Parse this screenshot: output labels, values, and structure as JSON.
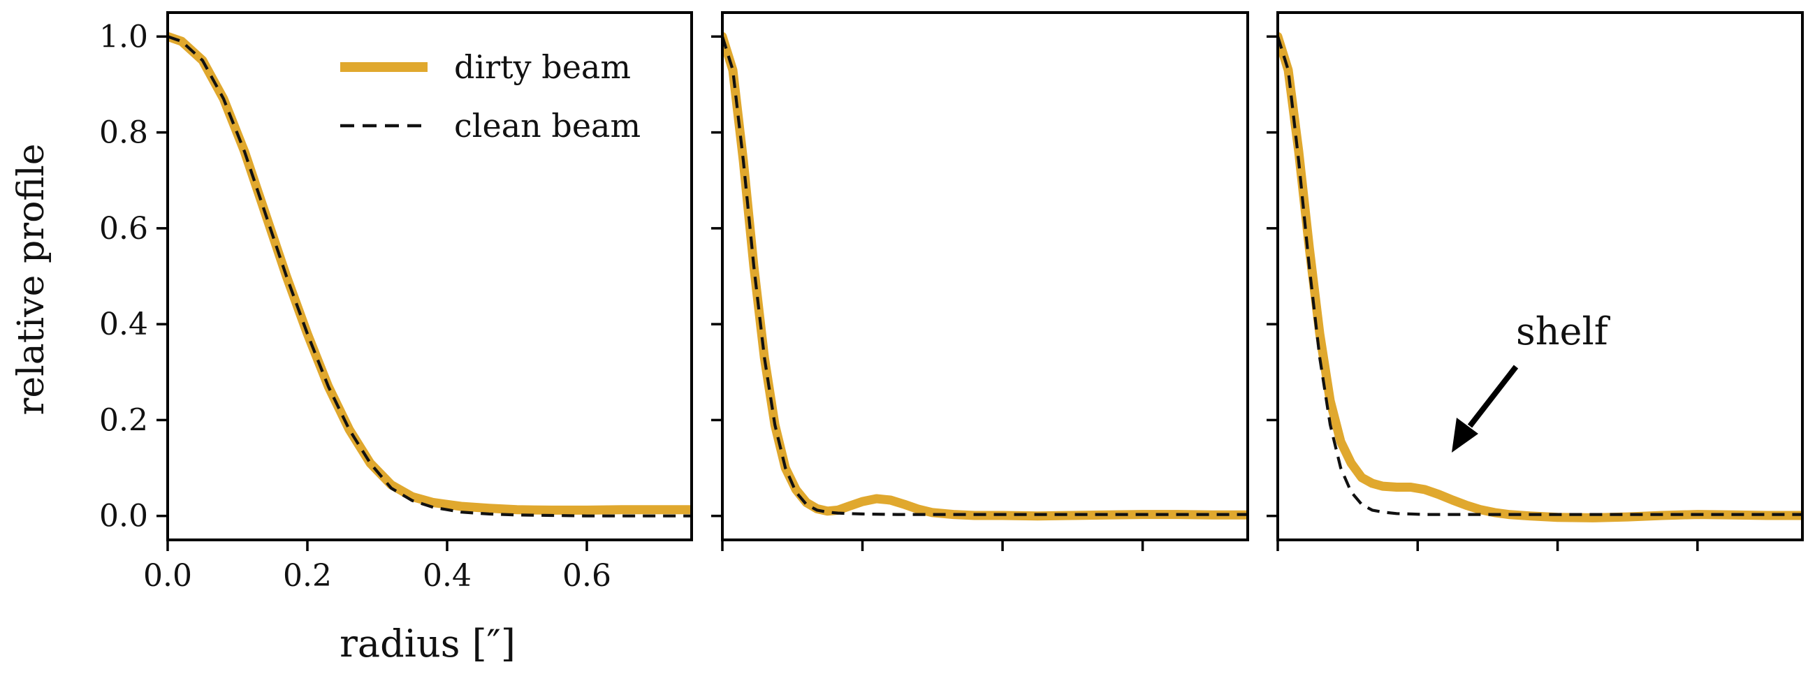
{
  "figure": {
    "ylabel": "relative profile",
    "xlabel": "radius [″]",
    "legend": {
      "placement": "top-right of first panel",
      "dirty_label": "dirty beam",
      "clean_label": "clean beam"
    },
    "annotation": {
      "text": "shelf",
      "panel": 3
    },
    "colors": {
      "dirty": "#E0A82E",
      "clean": "#111111",
      "axes": "#000000"
    }
  },
  "chart_data": [
    {
      "type": "line",
      "panel": 1,
      "xlim": [
        0.0,
        0.75
      ],
      "ylim": [
        -0.05,
        1.05
      ],
      "xticks": [
        0.0,
        0.2,
        0.4,
        0.6
      ],
      "xtick_labels": [
        "0.0",
        "0.2",
        "0.4",
        "0.6"
      ],
      "yticks": [
        0.0,
        0.2,
        0.4,
        0.6,
        0.8,
        1.0
      ],
      "ytick_labels": [
        "0.0",
        "0.2",
        "0.4",
        "0.6",
        "0.8",
        "1.0"
      ],
      "grid": false,
      "legend": true,
      "series": [
        {
          "name": "dirty beam",
          "style": "solid-thick",
          "x": [
            0.0,
            0.02,
            0.05,
            0.08,
            0.11,
            0.14,
            0.17,
            0.2,
            0.23,
            0.26,
            0.29,
            0.32,
            0.35,
            0.38,
            0.42,
            0.46,
            0.5,
            0.55,
            0.6,
            0.65,
            0.7,
            0.75
          ],
          "y": [
            1.0,
            0.99,
            0.95,
            0.87,
            0.76,
            0.63,
            0.5,
            0.38,
            0.27,
            0.18,
            0.11,
            0.065,
            0.04,
            0.028,
            0.02,
            0.016,
            0.013,
            0.012,
            0.012,
            0.013,
            0.013,
            0.013
          ]
        },
        {
          "name": "clean beam",
          "style": "dashed",
          "x": [
            0.0,
            0.02,
            0.05,
            0.08,
            0.11,
            0.14,
            0.17,
            0.2,
            0.23,
            0.26,
            0.29,
            0.32,
            0.35,
            0.38,
            0.42,
            0.46,
            0.5,
            0.55,
            0.6,
            0.65,
            0.7,
            0.75
          ],
          "y": [
            1.0,
            0.99,
            0.95,
            0.87,
            0.76,
            0.63,
            0.5,
            0.38,
            0.27,
            0.18,
            0.11,
            0.058,
            0.032,
            0.018,
            0.008,
            0.004,
            0.002,
            0.001,
            0.0,
            0.0,
            0.0,
            0.0
          ]
        }
      ]
    },
    {
      "type": "line",
      "panel": 2,
      "xlim": [
        0.0,
        0.75
      ],
      "ylim": [
        -0.05,
        1.05
      ],
      "xticks": [
        0.0,
        0.2,
        0.4,
        0.6
      ],
      "xtick_labels": [],
      "yticks": [
        0.0,
        0.2,
        0.4,
        0.6,
        0.8,
        1.0
      ],
      "ytick_labels": [],
      "grid": false,
      "legend": false,
      "series": [
        {
          "name": "dirty beam",
          "style": "solid-thick",
          "x": [
            0.0,
            0.015,
            0.03,
            0.045,
            0.06,
            0.075,
            0.09,
            0.105,
            0.12,
            0.135,
            0.15,
            0.165,
            0.18,
            0.2,
            0.22,
            0.24,
            0.26,
            0.28,
            0.3,
            0.33,
            0.36,
            0.4,
            0.45,
            0.5,
            0.55,
            0.6,
            0.65,
            0.7,
            0.75
          ],
          "y": [
            1.0,
            0.93,
            0.74,
            0.52,
            0.33,
            0.19,
            0.1,
            0.055,
            0.028,
            0.015,
            0.01,
            0.012,
            0.02,
            0.03,
            0.036,
            0.033,
            0.024,
            0.014,
            0.007,
            0.003,
            0.001,
            0.001,
            0.0,
            0.001,
            0.002,
            0.003,
            0.003,
            0.002,
            0.002
          ]
        },
        {
          "name": "clean beam",
          "style": "dashed",
          "x": [
            0.0,
            0.015,
            0.03,
            0.045,
            0.06,
            0.075,
            0.09,
            0.105,
            0.12,
            0.135,
            0.15,
            0.165,
            0.18,
            0.2,
            0.25,
            0.3,
            0.4,
            0.5,
            0.6,
            0.7,
            0.75
          ],
          "y": [
            1.0,
            0.93,
            0.74,
            0.52,
            0.33,
            0.19,
            0.1,
            0.05,
            0.024,
            0.012,
            0.008,
            0.006,
            0.005,
            0.004,
            0.003,
            0.003,
            0.003,
            0.003,
            0.003,
            0.003,
            0.003
          ]
        }
      ]
    },
    {
      "type": "line",
      "panel": 3,
      "xlim": [
        0.0,
        0.75
      ],
      "ylim": [
        -0.05,
        1.05
      ],
      "xticks": [
        0.0,
        0.2,
        0.4,
        0.6
      ],
      "xtick_labels": [],
      "yticks": [
        0.0,
        0.2,
        0.4,
        0.6,
        0.8,
        1.0
      ],
      "ytick_labels": [],
      "grid": false,
      "legend": false,
      "series": [
        {
          "name": "dirty beam",
          "style": "solid-thick",
          "x": [
            0.0,
            0.015,
            0.03,
            0.045,
            0.06,
            0.075,
            0.09,
            0.105,
            0.12,
            0.135,
            0.15,
            0.17,
            0.19,
            0.21,
            0.23,
            0.25,
            0.27,
            0.29,
            0.31,
            0.33,
            0.36,
            0.4,
            0.45,
            0.5,
            0.55,
            0.6,
            0.65,
            0.7,
            0.75
          ],
          "y": [
            1.0,
            0.93,
            0.76,
            0.56,
            0.38,
            0.24,
            0.155,
            0.11,
            0.08,
            0.068,
            0.062,
            0.06,
            0.06,
            0.055,
            0.045,
            0.033,
            0.022,
            0.013,
            0.007,
            0.003,
            0.0,
            -0.003,
            -0.004,
            -0.002,
            0.001,
            0.003,
            0.002,
            0.001,
            0.001
          ]
        },
        {
          "name": "clean beam",
          "style": "dashed",
          "x": [
            0.0,
            0.015,
            0.03,
            0.045,
            0.06,
            0.075,
            0.09,
            0.105,
            0.12,
            0.135,
            0.15,
            0.17,
            0.19,
            0.21,
            0.25,
            0.3,
            0.4,
            0.5,
            0.6,
            0.7,
            0.75
          ],
          "y": [
            1.0,
            0.93,
            0.74,
            0.52,
            0.33,
            0.19,
            0.1,
            0.05,
            0.024,
            0.012,
            0.008,
            0.005,
            0.004,
            0.003,
            0.003,
            0.003,
            0.003,
            0.003,
            0.003,
            0.003,
            0.003
          ]
        }
      ]
    }
  ]
}
